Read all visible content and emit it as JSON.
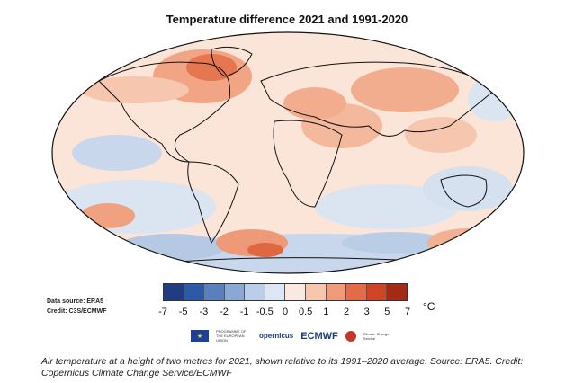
{
  "title": "Temperature difference 2021 and 1991-2020",
  "data_source": "Data source: ERA5",
  "credit": "Credit: C3S/ECMWF",
  "colorbar": {
    "colors": [
      "#203c83",
      "#2d5aa6",
      "#5a7fbf",
      "#8aa8d6",
      "#b9cfe7",
      "#dde7f3",
      "#fbe8e0",
      "#f6c6ae",
      "#f09b7c",
      "#e36b47",
      "#cf4525",
      "#a52a15"
    ],
    "ticks": [
      "-7",
      "-5",
      "-3",
      "-2",
      "-1",
      "-0.5",
      "0",
      "0.5",
      "1",
      "2",
      "3",
      "5",
      "7"
    ],
    "unit": "°C"
  },
  "logos": {
    "eu_text": "PROGRAMME OF THE EUROPEAN UNION",
    "copernicus": "opernicus",
    "ecmwf": "ECMWF",
    "climate": "Climate Change Service"
  },
  "caption": "Air temperature at a height of two metres for 2021, shown relative to its 1991–2020 average. Source: ERA5. Credit: Copernicus Climate Change Service/ECMWF"
}
